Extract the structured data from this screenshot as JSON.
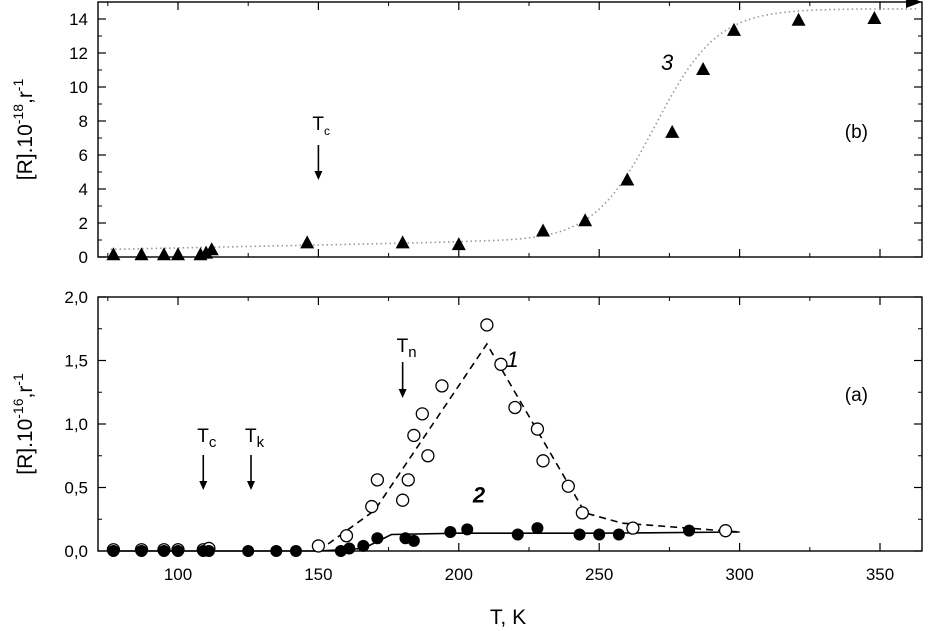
{
  "chart_data": [
    {
      "panel": "(b)",
      "type": "scatter",
      "ylabel_parts": {
        "pre": "[R].10",
        "exp1": "-18",
        "mid": ",r",
        "exp2": "-1"
      },
      "xlim": [
        70,
        375
      ],
      "ylim": [
        0,
        15
      ],
      "xticks": [
        100,
        150,
        200,
        250,
        300,
        350
      ],
      "yticks": [
        0,
        2,
        4,
        6,
        8,
        10,
        12,
        14
      ],
      "ytick_labels": [
        "0",
        "2",
        "4",
        "6",
        "8",
        "10",
        "12",
        "14"
      ],
      "series": [
        {
          "name": "3",
          "marker": "filled-triangle",
          "x": [
            77,
            87,
            95,
            100,
            108,
            110,
            112,
            146,
            180,
            200,
            230,
            245,
            260,
            276,
            287,
            298,
            321,
            348
          ],
          "y": [
            0.1,
            0.1,
            0.1,
            0.1,
            0.1,
            0.2,
            0.4,
            0.8,
            0.8,
            0.7,
            1.5,
            2.1,
            4.5,
            7.3,
            11.0,
            13.3,
            13.9,
            14.0
          ],
          "fit": "dotted-sigmoid"
        }
      ],
      "annotations": [
        {
          "main": "T",
          "sub": "c",
          "x": 150
        }
      ],
      "curve_labels": [
        {
          "text": "3",
          "x": 272,
          "y": 11
        }
      ],
      "panel_label": "(b)"
    },
    {
      "panel": "(a)",
      "type": "scatter",
      "xlabel": "T, K",
      "ylabel_parts": {
        "pre": "[R].10",
        "exp1": "-16",
        "mid": ",r",
        "exp2": "-1"
      },
      "xlim": [
        70,
        375
      ],
      "ylim": [
        0,
        2.0
      ],
      "xticks": [
        100,
        150,
        200,
        250,
        300,
        350
      ],
      "xtick_labels": [
        "100",
        "150",
        "200",
        "250",
        "300",
        "350"
      ],
      "yticks": [
        0,
        0.5,
        1.0,
        1.5,
        2.0
      ],
      "ytick_labels": [
        "0,0",
        "0,5",
        "1,0",
        "1,5",
        "2,0"
      ],
      "series": [
        {
          "name": "1",
          "marker": "open-circle",
          "x": [
            77,
            87,
            95,
            100,
            109,
            111,
            150,
            160,
            169,
            171,
            180,
            182,
            184,
            187,
            189,
            194,
            210,
            215,
            220,
            228,
            230,
            239,
            244,
            262,
            295
          ],
          "y": [
            0.01,
            0.01,
            0.01,
            0.01,
            0.01,
            0.02,
            0.04,
            0.12,
            0.35,
            0.56,
            0.4,
            0.56,
            0.91,
            1.08,
            0.75,
            1.3,
            1.78,
            1.47,
            1.13,
            0.96,
            0.71,
            0.51,
            0.3,
            0.18,
            0.16
          ],
          "fit_x": [
            150,
            170,
            210,
            245,
            258,
            300
          ],
          "fit_y": [
            0.0,
            0.32,
            1.63,
            0.3,
            0.22,
            0.15
          ],
          "fit_style": "dashed"
        },
        {
          "name": "2",
          "marker": "filled-circle",
          "x": [
            77,
            87,
            95,
            100,
            109,
            111,
            125,
            135,
            142,
            158,
            161,
            166,
            171,
            181,
            184,
            197,
            203,
            221,
            228,
            243,
            250,
            257,
            282
          ],
          "y": [
            0.0,
            0.0,
            0.0,
            0.0,
            0.0,
            0.0,
            0.0,
            0.0,
            0.0,
            0.0,
            0.02,
            0.04,
            0.1,
            0.1,
            0.08,
            0.15,
            0.17,
            0.13,
            0.18,
            0.13,
            0.13,
            0.13,
            0.16
          ],
          "fit_x": [
            77,
            150,
            166,
            176,
            200,
            250,
            300
          ],
          "fit_y": [
            0.0,
            0.0,
            0.02,
            0.13,
            0.14,
            0.14,
            0.15
          ],
          "fit_style": "solid"
        }
      ],
      "annotations": [
        {
          "main": "T",
          "sub": "c",
          "x": 109
        },
        {
          "main": "T",
          "sub": "k",
          "x": 126
        },
        {
          "main": "T",
          "sub": "n",
          "x": 180
        }
      ],
      "curve_labels": [
        {
          "text": "1",
          "x": 217,
          "y": 1.45
        },
        {
          "text": "2",
          "x": 205,
          "y": 0.38
        }
      ],
      "panel_label": "(a)"
    }
  ]
}
